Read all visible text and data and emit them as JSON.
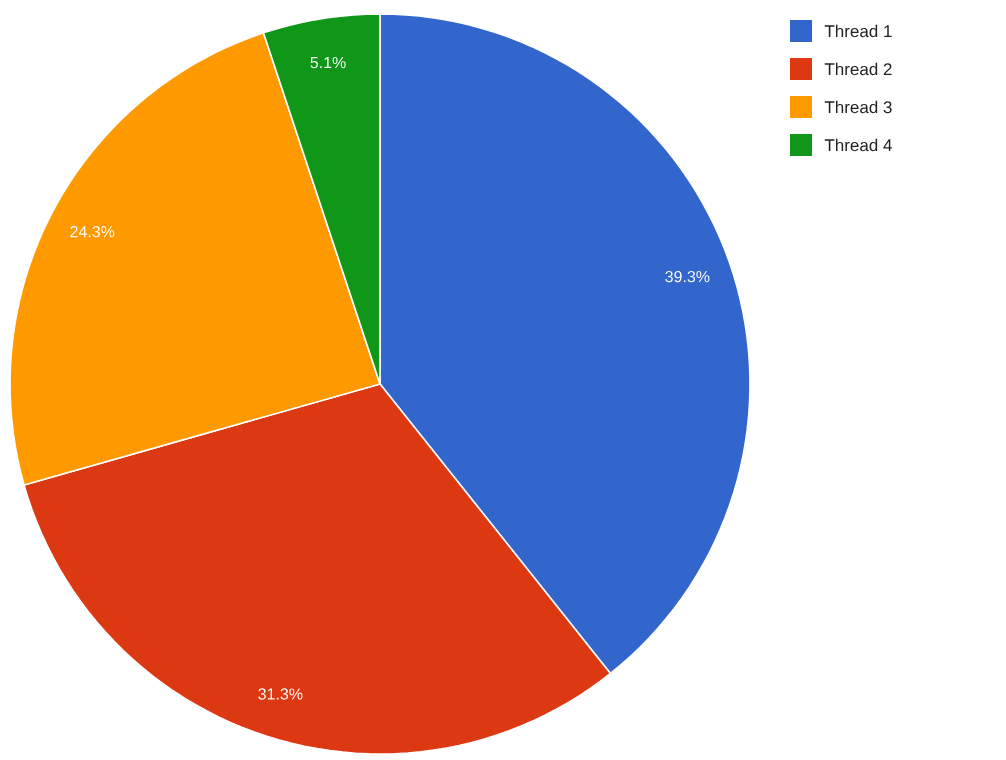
{
  "chart_data": {
    "type": "pie",
    "categories": [
      "Thread 1",
      "Thread 2",
      "Thread 3",
      "Thread 4"
    ],
    "values": [
      39.3,
      31.3,
      24.3,
      5.1
    ],
    "colors": [
      "#3366cc",
      "#dc3912",
      "#ff9900",
      "#109618"
    ],
    "value_labels": [
      "39.3%",
      "31.3%",
      "24.3%",
      "5.1%"
    ],
    "legend": "top right"
  }
}
